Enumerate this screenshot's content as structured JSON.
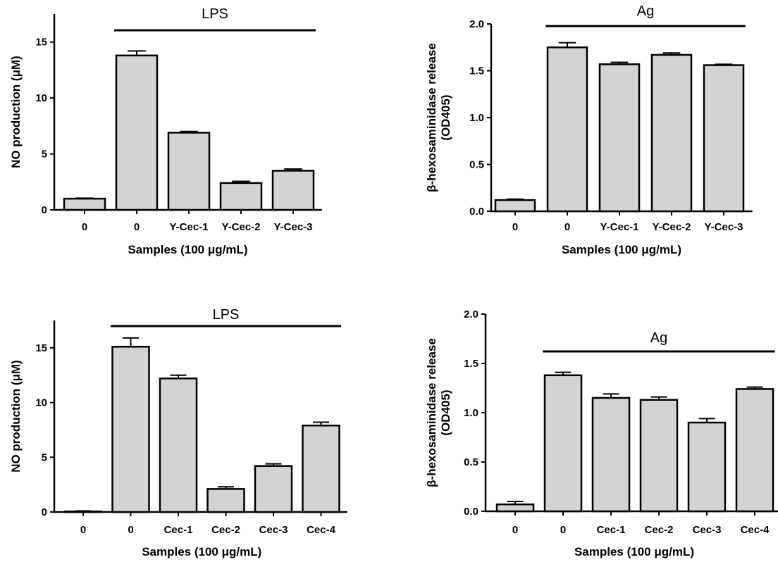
{
  "chart_data": [
    {
      "type": "bar",
      "categories": [
        "0",
        "0",
        "Y-Cec-1",
        "Y-Cec-2",
        "Y-Cec-3"
      ],
      "values": [
        1.0,
        13.8,
        6.9,
        2.4,
        3.5
      ],
      "errors": [
        0.05,
        0.4,
        0.1,
        0.15,
        0.15
      ],
      "ylim": [
        0,
        17.5
      ],
      "yticks": [
        0,
        5,
        10,
        15
      ],
      "ylabel": "NO production (μM)",
      "xlabel": "Samples (100 μg/mL)",
      "bracket": {
        "label": "LPS",
        "from_index": 1,
        "to_index": 4
      },
      "bar_color": "#d3d3d3",
      "grid": false
    },
    {
      "type": "bar",
      "categories": [
        "0",
        "0",
        "Y-Cec-1",
        "Y-Cec-2",
        "Y-Cec-3"
      ],
      "values": [
        0.12,
        1.75,
        1.57,
        1.67,
        1.56
      ],
      "errors": [
        0.01,
        0.05,
        0.02,
        0.02,
        0.01
      ],
      "ylim": [
        0,
        2.0
      ],
      "yticks": [
        "0.0",
        "0.5",
        "1.0",
        "1.5",
        "2.0"
      ],
      "ylabel": "β-hexosaminidase release",
      "ylabel2": "(OD405)",
      "xlabel": "Samples (100 μg/mL)",
      "bracket": {
        "label": "Ag",
        "from_index": 1,
        "to_index": 4
      },
      "bar_color": "#d3d3d3",
      "grid": false
    },
    {
      "type": "bar",
      "categories": [
        "0",
        "0",
        "Cec-1",
        "Cec-2",
        "Cec-3",
        "Cec-4"
      ],
      "values": [
        0.05,
        15.1,
        12.2,
        2.1,
        4.2,
        7.9
      ],
      "errors": [
        0.05,
        0.8,
        0.3,
        0.2,
        0.2,
        0.3
      ],
      "ylim": [
        0,
        17.5
      ],
      "yticks": [
        0,
        5,
        10,
        15
      ],
      "ylabel": "NO production (μM)",
      "xlabel": "Samples (100 μg/mL)",
      "bracket": {
        "label": "LPS",
        "from_index": 1,
        "to_index": 5
      },
      "bar_color": "#d3d3d3",
      "grid": false
    },
    {
      "type": "bar",
      "categories": [
        "0",
        "0",
        "Cec-1",
        "Cec-2",
        "Cec-3",
        "Cec-4"
      ],
      "values": [
        0.07,
        1.38,
        1.15,
        1.13,
        0.9,
        1.24
      ],
      "errors": [
        0.03,
        0.03,
        0.04,
        0.03,
        0.04,
        0.02
      ],
      "ylim": [
        0,
        2.0
      ],
      "yticks": [
        "0.0",
        "0.5",
        "1.0",
        "1.5",
        "2.0"
      ],
      "ylabel": "β-hexosaminidase release",
      "ylabel2": "(OD405)",
      "xlabel": "Samples (100 μg/mL)",
      "bracket": {
        "label": "Ag",
        "from_index": 1,
        "to_index": 5
      },
      "bar_color": "#d3d3d3",
      "grid": false
    }
  ]
}
